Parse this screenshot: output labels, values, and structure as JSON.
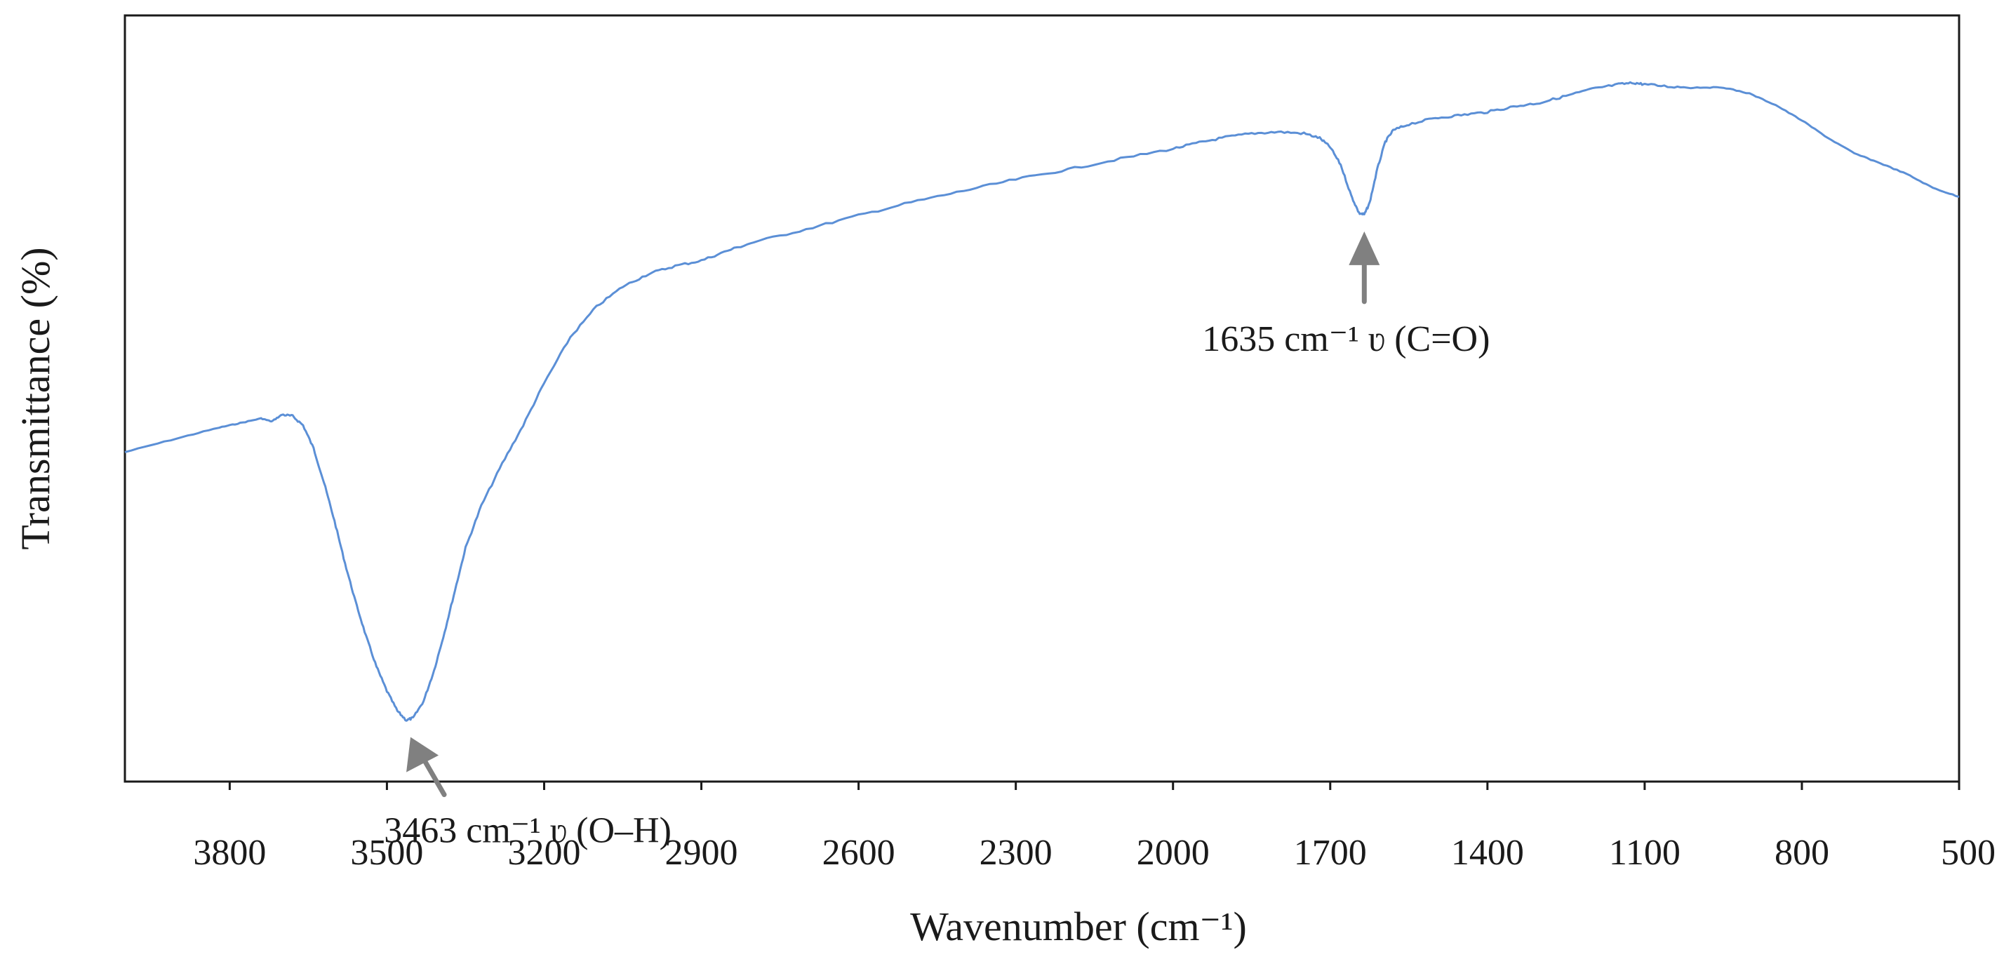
{
  "chart_data": {
    "type": "line",
    "title": "",
    "xlabel": "Wavenumber (cm⁻¹)",
    "ylabel": "Transmittance (%)",
    "xlim": [
      4000,
      500
    ],
    "x_reversed": true,
    "ylim": [
      0,
      100
    ],
    "y_tick_labels_shown": false,
    "grid": false,
    "legend": "none",
    "x_ticks": [
      3800,
      3500,
      3200,
      2900,
      2600,
      2300,
      2000,
      1700,
      1400,
      1100,
      800,
      500
    ],
    "series": [
      {
        "color": "#5b8fd6",
        "points": [
          [
            4000,
            43.0
          ],
          [
            3900,
            44.8
          ],
          [
            3820,
            46.2
          ],
          [
            3780,
            46.8
          ],
          [
            3740,
            47.4
          ],
          [
            3720,
            47.0
          ],
          [
            3700,
            47.9
          ],
          [
            3680,
            47.7
          ],
          [
            3660,
            46.5
          ],
          [
            3640,
            43.5
          ],
          [
            3620,
            39.0
          ],
          [
            3600,
            34.0
          ],
          [
            3580,
            28.5
          ],
          [
            3560,
            23.5
          ],
          [
            3540,
            19.0
          ],
          [
            3520,
            15.0
          ],
          [
            3500,
            11.8
          ],
          [
            3480,
            9.2
          ],
          [
            3463,
            8.0
          ],
          [
            3450,
            8.3
          ],
          [
            3430,
            10.5
          ],
          [
            3410,
            14.5
          ],
          [
            3390,
            19.5
          ],
          [
            3370,
            25.0
          ],
          [
            3350,
            30.5
          ],
          [
            3320,
            36.0
          ],
          [
            3280,
            41.5
          ],
          [
            3240,
            46.5
          ],
          [
            3200,
            52.0
          ],
          [
            3150,
            58.0
          ],
          [
            3100,
            62.0
          ],
          [
            3050,
            64.6
          ],
          [
            3000,
            66.3
          ],
          [
            2950,
            67.3
          ],
          [
            2900,
            68.0
          ],
          [
            2850,
            69.3
          ],
          [
            2800,
            70.4
          ],
          [
            2700,
            72.1
          ],
          [
            2600,
            73.9
          ],
          [
            2500,
            75.6
          ],
          [
            2400,
            77.1
          ],
          [
            2300,
            78.6
          ],
          [
            2200,
            79.9
          ],
          [
            2100,
            81.3
          ],
          [
            2000,
            82.6
          ],
          [
            1950,
            83.4
          ],
          [
            1900,
            84.1
          ],
          [
            1850,
            84.6
          ],
          [
            1800,
            84.8
          ],
          [
            1750,
            84.6
          ],
          [
            1720,
            84.0
          ],
          [
            1700,
            82.8
          ],
          [
            1680,
            80.5
          ],
          [
            1660,
            76.5
          ],
          [
            1645,
            74.2
          ],
          [
            1635,
            74.0
          ],
          [
            1625,
            75.5
          ],
          [
            1610,
            80.0
          ],
          [
            1595,
            83.5
          ],
          [
            1580,
            85.0
          ],
          [
            1550,
            85.8
          ],
          [
            1500,
            86.6
          ],
          [
            1450,
            87.0
          ],
          [
            1400,
            87.4
          ],
          [
            1350,
            88.1
          ],
          [
            1300,
            88.6
          ],
          [
            1250,
            89.5
          ],
          [
            1200,
            90.4
          ],
          [
            1150,
            91.0
          ],
          [
            1120,
            91.2
          ],
          [
            1100,
            91.0
          ],
          [
            1050,
            90.7
          ],
          [
            1000,
            90.6
          ],
          [
            950,
            90.6
          ],
          [
            900,
            89.8
          ],
          [
            850,
            88.3
          ],
          [
            800,
            86.3
          ],
          [
            750,
            84.0
          ],
          [
            700,
            82.0
          ],
          [
            650,
            80.7
          ],
          [
            600,
            79.3
          ],
          [
            550,
            77.5
          ],
          [
            500,
            76.3
          ]
        ]
      }
    ],
    "annotations": [
      {
        "text": "1635 cm⁻¹ ʋ (C=O)",
        "x": 1635,
        "y": 74.0,
        "position": "below"
      },
      {
        "text": "3463 cm⁻¹ ʋ (O–H)",
        "x": 3463,
        "y": 8.0,
        "position": "below"
      }
    ],
    "annotation_color": "#808080"
  }
}
